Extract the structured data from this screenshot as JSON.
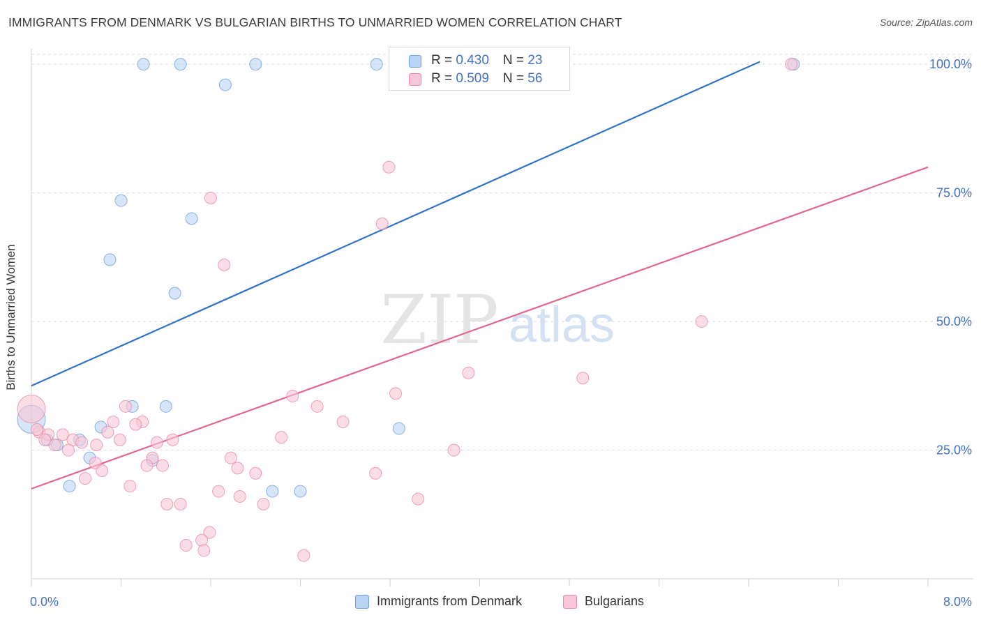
{
  "title": "IMMIGRANTS FROM DENMARK VS BULGARIAN BIRTHS TO UNMARRIED WOMEN CORRELATION CHART",
  "source": "Source: ZipAtlas.com",
  "watermark": {
    "zip": "ZIP",
    "atlas": "atlas"
  },
  "legend_top": [
    {
      "r_label": "R = ",
      "r_value": "0.430",
      "n_label": "N = ",
      "n_value": "23"
    },
    {
      "r_label": "R = ",
      "r_value": "0.509",
      "n_label": "N = ",
      "n_value": "56"
    }
  ],
  "chart_data": {
    "type": "scatter",
    "title": "IMMIGRANTS FROM DENMARK VS BULGARIAN BIRTHS TO UNMARRIED WOMEN CORRELATION CHART",
    "xlabel": "",
    "ylabel": "Births to Unmarried Women",
    "xlim": [
      0,
      8
    ],
    "ylim": [
      0,
      103
    ],
    "x_tick_labels": [
      "0.0%",
      "8.0%"
    ],
    "y_ticks": [
      25,
      50,
      75,
      100
    ],
    "y_tick_labels": [
      "25.0%",
      "50.0%",
      "75.0%",
      "100.0%"
    ],
    "grid": true,
    "legend_position": "bottom",
    "series": [
      {
        "name": "Immigrants from Denmark",
        "color": "#6f9ee0",
        "fill": "#bad3f4",
        "points": [
          {
            "x": 1.0,
            "y": 100
          },
          {
            "x": 1.33,
            "y": 100
          },
          {
            "x": 2.0,
            "y": 100
          },
          {
            "x": 3.08,
            "y": 100
          },
          {
            "x": 6.8,
            "y": 100
          },
          {
            "x": 1.73,
            "y": 96
          },
          {
            "x": 0.8,
            "y": 73.5
          },
          {
            "x": 1.43,
            "y": 70
          },
          {
            "x": 0.7,
            "y": 62
          },
          {
            "x": 1.28,
            "y": 55.5
          },
          {
            "x": 0.0,
            "y": 31,
            "size": "large"
          },
          {
            "x": 0.9,
            "y": 33.5
          },
          {
            "x": 1.2,
            "y": 33.5
          },
          {
            "x": 0.62,
            "y": 29.5
          },
          {
            "x": 3.28,
            "y": 29.2
          },
          {
            "x": 0.14,
            "y": 27
          },
          {
            "x": 0.43,
            "y": 27
          },
          {
            "x": 0.23,
            "y": 26
          },
          {
            "x": 0.52,
            "y": 23.5
          },
          {
            "x": 1.08,
            "y": 23
          },
          {
            "x": 0.34,
            "y": 18
          },
          {
            "x": 2.15,
            "y": 17
          },
          {
            "x": 2.4,
            "y": 17
          }
        ],
        "trend": {
          "x0": 0,
          "y0": 37.5,
          "x1": 6.5,
          "y1": 100.5
        }
      },
      {
        "name": "Bulgarians",
        "color": "#e88aa8",
        "fill": "#f8c6d6",
        "points": [
          {
            "x": 3.25,
            "y": 100
          },
          {
            "x": 6.78,
            "y": 100
          },
          {
            "x": 3.19,
            "y": 80
          },
          {
            "x": 1.6,
            "y": 74
          },
          {
            "x": 3.13,
            "y": 69
          },
          {
            "x": 1.72,
            "y": 61
          },
          {
            "x": 5.98,
            "y": 50
          },
          {
            "x": 3.9,
            "y": 40
          },
          {
            "x": 4.92,
            "y": 39
          },
          {
            "x": 3.25,
            "y": 36
          },
          {
            "x": 2.33,
            "y": 35.5
          },
          {
            "x": 2.55,
            "y": 33.5
          },
          {
            "x": 0.84,
            "y": 33.5
          },
          {
            "x": 0.0,
            "y": 33,
            "size": "large"
          },
          {
            "x": 0.73,
            "y": 30.5
          },
          {
            "x": 0.99,
            "y": 30.5
          },
          {
            "x": 2.78,
            "y": 30.5
          },
          {
            "x": 0.93,
            "y": 30
          },
          {
            "x": 0.07,
            "y": 28.5
          },
          {
            "x": 0.68,
            "y": 28.5
          },
          {
            "x": 0.15,
            "y": 28
          },
          {
            "x": 0.28,
            "y": 28
          },
          {
            "x": 2.23,
            "y": 27.5
          },
          {
            "x": 0.37,
            "y": 27
          },
          {
            "x": 0.79,
            "y": 27
          },
          {
            "x": 1.12,
            "y": 26.5
          },
          {
            "x": 1.26,
            "y": 27
          },
          {
            "x": 0.58,
            "y": 26
          },
          {
            "x": 0.33,
            "y": 25
          },
          {
            "x": 0.21,
            "y": 26
          },
          {
            "x": 3.77,
            "y": 25
          },
          {
            "x": 1.78,
            "y": 23.5
          },
          {
            "x": 1.08,
            "y": 23.5
          },
          {
            "x": 0.57,
            "y": 22.5
          },
          {
            "x": 1.03,
            "y": 22
          },
          {
            "x": 1.17,
            "y": 22
          },
          {
            "x": 0.63,
            "y": 21
          },
          {
            "x": 1.84,
            "y": 21.5
          },
          {
            "x": 2.0,
            "y": 20.5
          },
          {
            "x": 3.07,
            "y": 20.5
          },
          {
            "x": 0.48,
            "y": 19.5
          },
          {
            "x": 0.88,
            "y": 18
          },
          {
            "x": 1.67,
            "y": 17
          },
          {
            "x": 1.86,
            "y": 16
          },
          {
            "x": 3.45,
            "y": 15.5
          },
          {
            "x": 2.07,
            "y": 14.5
          },
          {
            "x": 1.21,
            "y": 14.5
          },
          {
            "x": 1.33,
            "y": 14.5
          },
          {
            "x": 1.59,
            "y": 9
          },
          {
            "x": 1.52,
            "y": 7.5
          },
          {
            "x": 1.38,
            "y": 6.5
          },
          {
            "x": 1.54,
            "y": 5.5
          },
          {
            "x": 2.43,
            "y": 4.5
          },
          {
            "x": 0.12,
            "y": 27
          },
          {
            "x": 0.45,
            "y": 26.5
          },
          {
            "x": 0.05,
            "y": 29
          }
        ],
        "trend": {
          "x0": 0,
          "y0": 17.5,
          "x1": 8,
          "y1": 80
        }
      }
    ]
  }
}
